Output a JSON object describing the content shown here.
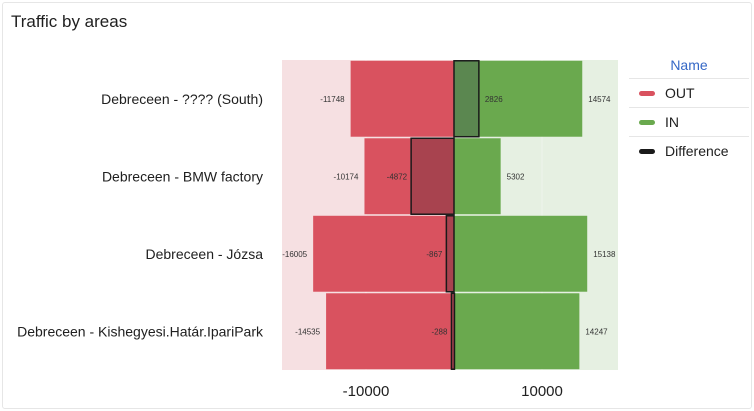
{
  "panel": {
    "title": "Traffic by areas"
  },
  "legend": {
    "header": "Name",
    "items": [
      {
        "label": "OUT",
        "color": "#d9525f"
      },
      {
        "label": "IN",
        "color": "#6aa94e"
      },
      {
        "label": "Difference",
        "color": "#1a1a1a"
      }
    ]
  },
  "chart_data": {
    "type": "bar",
    "orientation": "horizontal",
    "categories": [
      "Debreceen - ???? (South)",
      "Debreceen - BMW factory",
      "Debreceen - Józsa",
      "Debreceen - Kishegyesi.Határ.IpariPark"
    ],
    "series": [
      {
        "name": "OUT",
        "values": [
          -11748,
          -10174,
          -16005,
          -14535
        ],
        "color": "#d9525f"
      },
      {
        "name": "IN",
        "values": [
          14574,
          5302,
          15138,
          14247
        ],
        "color": "#6aa94e"
      },
      {
        "name": "Difference",
        "values": [
          2826,
          -4872,
          -867,
          -288
        ],
        "color": "#1a1a1a"
      }
    ],
    "xlim": [
      -20000,
      20000
    ],
    "xticks": [
      -10000,
      10000
    ],
    "xtick_labels": [
      "-10000",
      "10000"
    ],
    "legend_position": "right",
    "background_regions": [
      {
        "from": -20000,
        "to": 0,
        "color": "#f6e0e2"
      },
      {
        "from": 0,
        "to": 20000,
        "color": "#e6f0e2"
      }
    ]
  }
}
